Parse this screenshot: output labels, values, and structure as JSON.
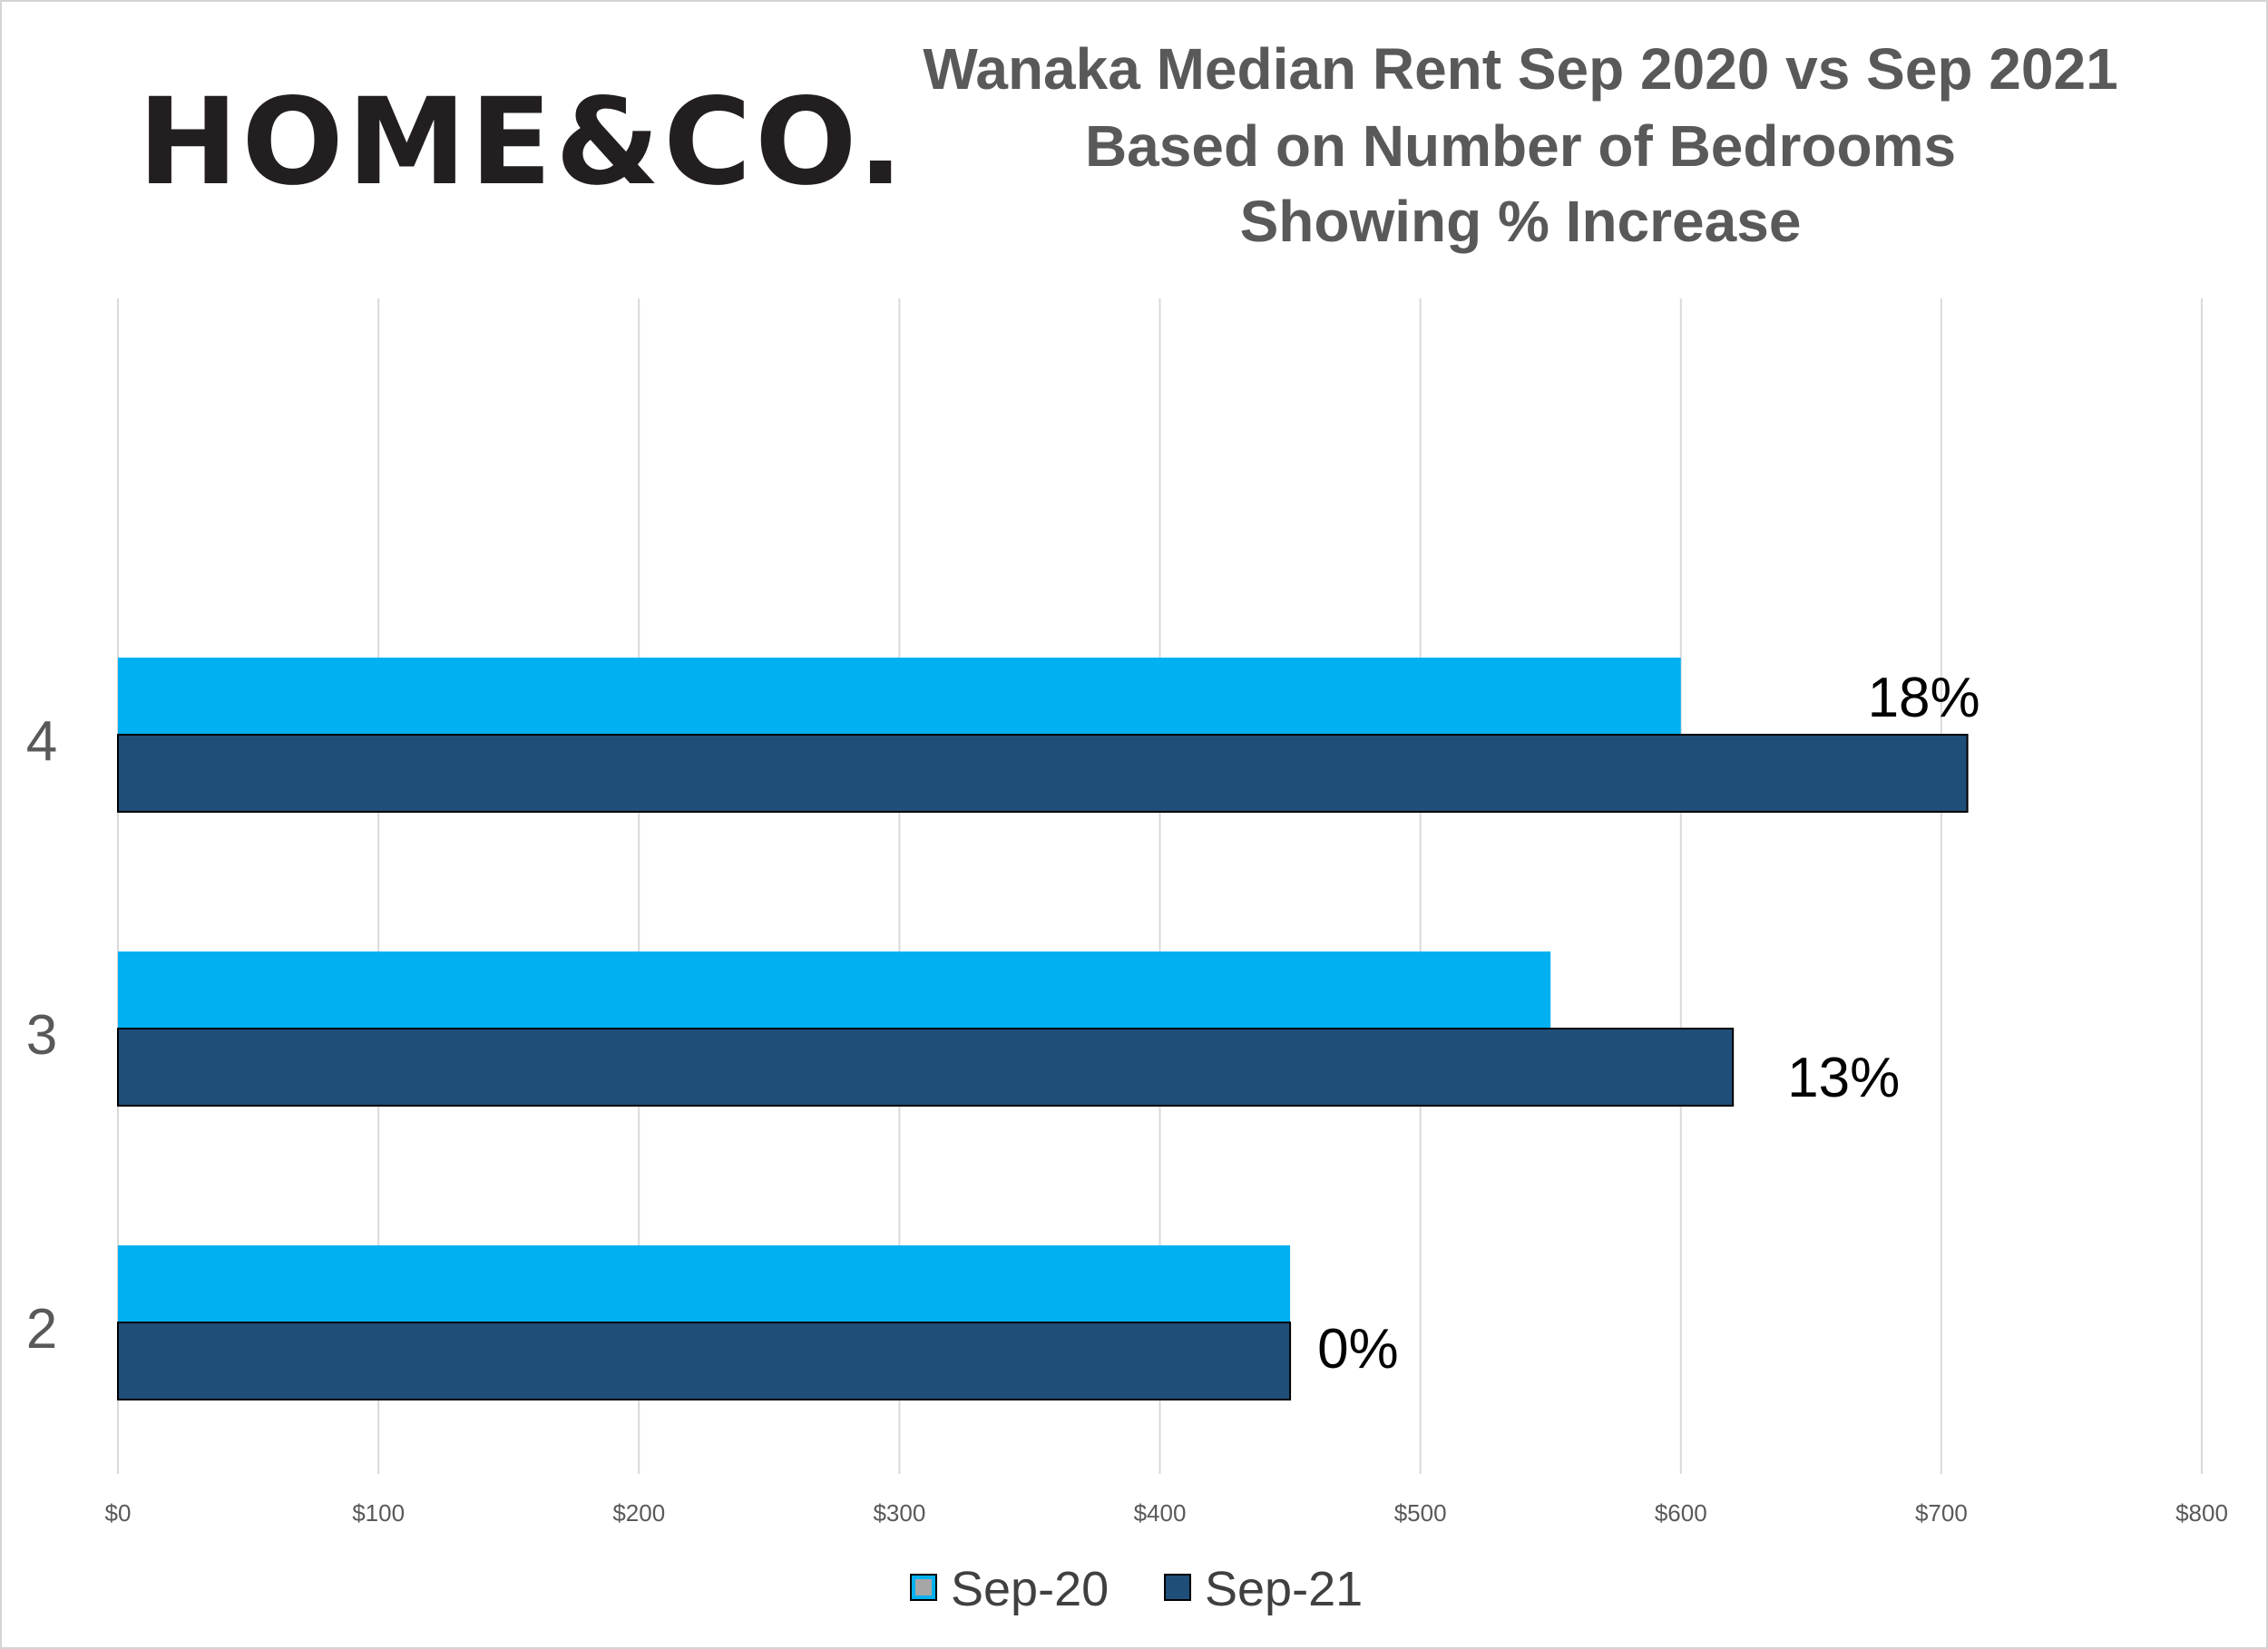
{
  "logo": {
    "text": "HOME&CO."
  },
  "chart_data": {
    "type": "bar",
    "orientation": "horizontal",
    "title": [
      "Wanaka Median Rent Sep 2020 vs Sep 2021",
      "Based on Number of Bedrooms",
      "Showing % Increase"
    ],
    "categories": [
      "4",
      "3",
      "2"
    ],
    "series": [
      {
        "name": "Sep-20",
        "values": [
          600,
          550,
          450
        ],
        "color": "#00b0f0"
      },
      {
        "name": "Sep-21",
        "values": [
          710,
          620,
          450
        ],
        "color": "#1f4e79"
      }
    ],
    "data_labels": [
      "18%",
      "13%",
      "0%"
    ],
    "xlim": [
      0,
      800
    ],
    "x_ticks": [
      "$0",
      "$100",
      "$200",
      "$300",
      "$400",
      "$500",
      "$600",
      "$700",
      "$800"
    ],
    "grid": "vertical",
    "legend_position": "bottom"
  }
}
